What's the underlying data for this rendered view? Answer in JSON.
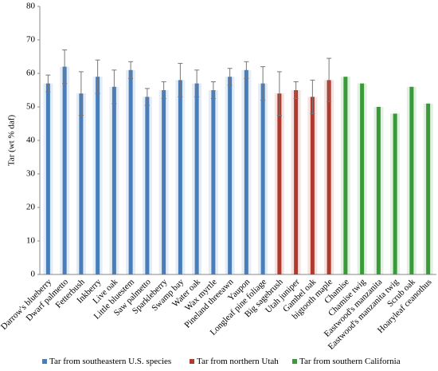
{
  "chart_data": {
    "type": "bar",
    "ylabel": "Tar (wt % daf)",
    "categories": [
      "Darrow's blueberry",
      "Dwarf palmetto",
      "Fetterbush",
      "Inkberry",
      "Live oak",
      "Little bluestem",
      "Saw palmetto",
      "Sparkleberry",
      "Swamp bay",
      "Water oak",
      "Wax myrtle",
      "Pineland threeawn",
      "Yaupon",
      "Longleaf pine foliage",
      "Big sagebrush",
      "Utah juniper",
      "Gambel oak",
      "bigtooth maple",
      "Chamise",
      "Chamise twig",
      "Eastwood's manzanita",
      "Eastwood's manzanita twig",
      "Scrub oak",
      "Hoaryleaf ceanothus"
    ],
    "series": [
      {
        "name": "Tar from southeastern U.S. species",
        "color": "#4a7ebb",
        "values": [
          57,
          62,
          54,
          59,
          56,
          61,
          53,
          55,
          58,
          57,
          55,
          59,
          61,
          57,
          null,
          null,
          null,
          null,
          null,
          null,
          null,
          null,
          null,
          null
        ],
        "errors": [
          2.5,
          5,
          6.5,
          5,
          5,
          2.5,
          2.5,
          2.5,
          5,
          4,
          2.5,
          2.5,
          2.5,
          5,
          null,
          null,
          null,
          null,
          null,
          null,
          null,
          null,
          null,
          null
        ]
      },
      {
        "name": "Tar from northern Utah",
        "color": "#b03a2e",
        "values": [
          null,
          null,
          null,
          null,
          null,
          null,
          null,
          null,
          null,
          null,
          null,
          null,
          null,
          null,
          54,
          55,
          53,
          58,
          null,
          null,
          null,
          null,
          null,
          null
        ],
        "errors": [
          null,
          null,
          null,
          null,
          null,
          null,
          null,
          null,
          null,
          null,
          null,
          null,
          null,
          null,
          6.5,
          2.5,
          5,
          6.5,
          null,
          null,
          null,
          null,
          null,
          null
        ]
      },
      {
        "name": "Tar from southern California",
        "color": "#3a9a3a",
        "values": [
          null,
          null,
          null,
          null,
          null,
          null,
          null,
          null,
          null,
          null,
          null,
          null,
          null,
          null,
          null,
          null,
          null,
          null,
          59,
          57,
          50,
          48,
          56,
          51
        ]
      }
    ],
    "ylim": [
      0,
      80
    ],
    "yticks": [
      0,
      10,
      20,
      30,
      40,
      50,
      60,
      70,
      80
    ],
    "legend": "bottom"
  }
}
